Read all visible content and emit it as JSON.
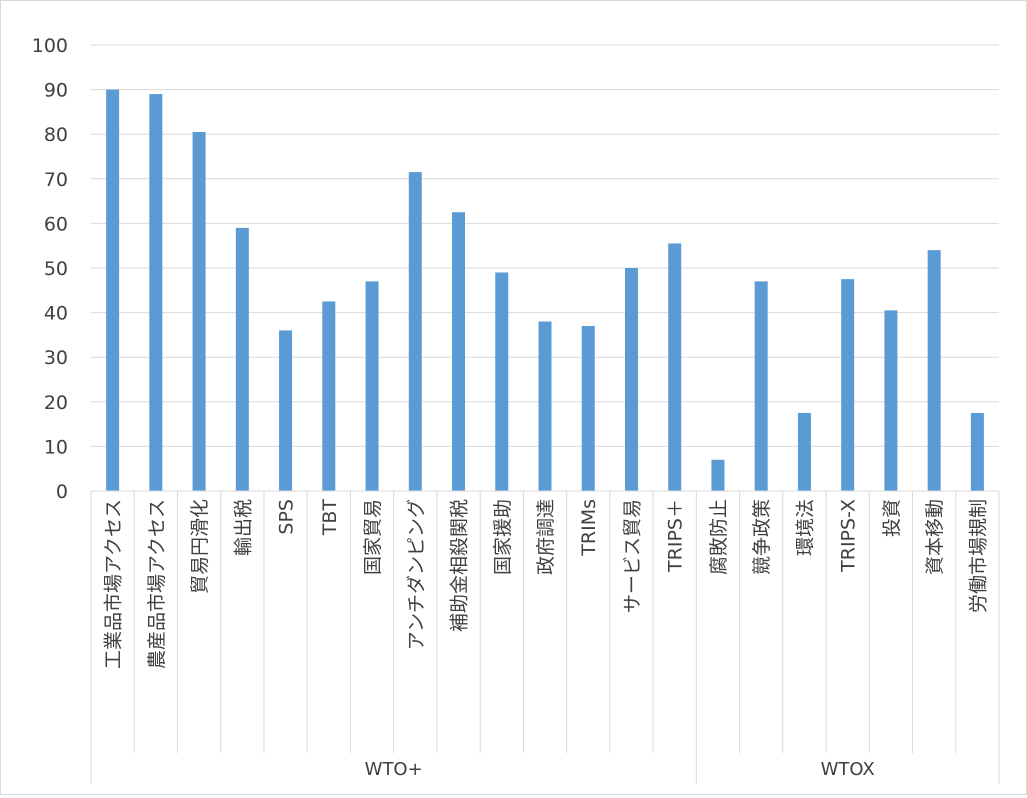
{
  "chart_data": {
    "type": "bar",
    "title": "",
    "xlabel": "",
    "ylabel": "",
    "ylim": [
      0,
      100
    ],
    "yticks": [
      0,
      10,
      20,
      30,
      40,
      50,
      60,
      70,
      80,
      90,
      100
    ],
    "grid": true,
    "legend": "none",
    "bar_color": "#5b9bd5",
    "categories": [
      "工業品市場アクセス",
      "農産品市場アクセス",
      "貿易円滑化",
      "輸出税",
      "SPS",
      "TBT",
      "国家貿易",
      "アンチダンピング",
      "補助金相殺関税",
      "国家援助",
      "政府調達",
      "TRIMs",
      "サービス貿易",
      "TRIPS＋",
      "腐敗防止",
      "競争政策",
      "環境法",
      "TRIPS-X",
      "投資",
      "資本移動",
      "労働市場規制"
    ],
    "values": [
      90,
      89,
      80.5,
      59,
      36,
      42.5,
      47,
      71.5,
      62.5,
      49,
      38,
      37,
      50,
      55.5,
      7,
      47,
      17.5,
      47.5,
      40.5,
      54,
      17.5
    ],
    "groups": [
      {
        "label": "WTO+",
        "start": 0,
        "end": 13
      },
      {
        "label": "WTOX",
        "start": 14,
        "end": 20
      }
    ]
  }
}
